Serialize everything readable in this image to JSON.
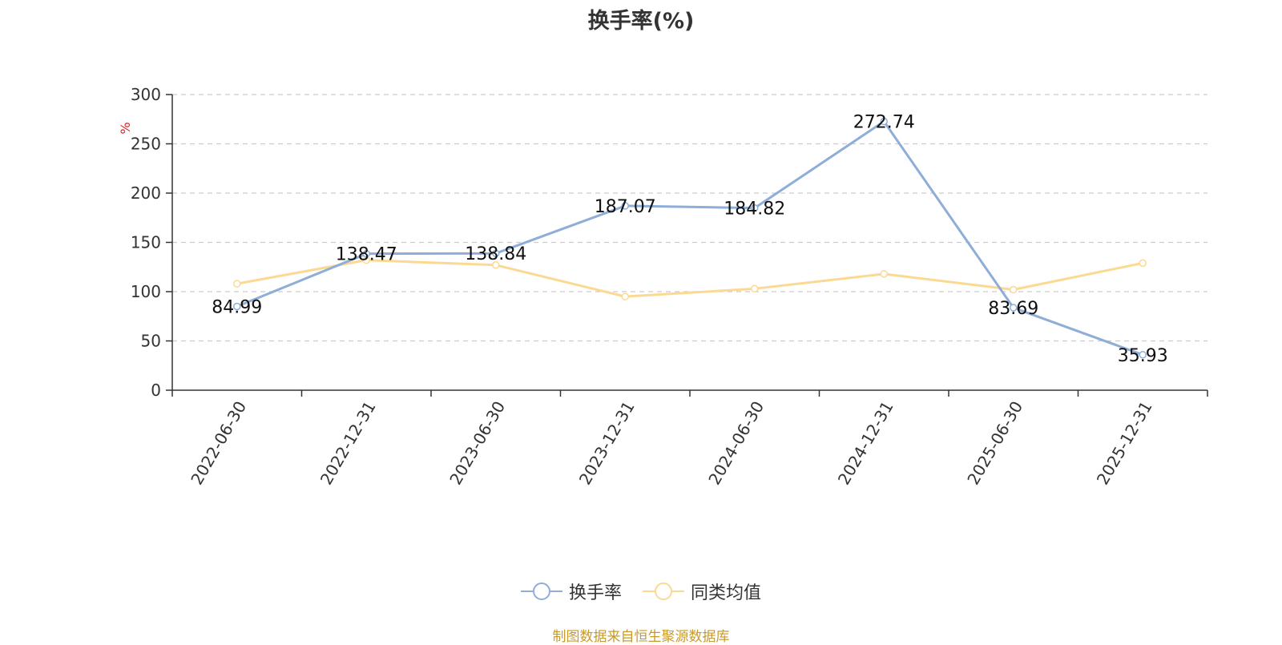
{
  "chart_data": {
    "type": "line",
    "title": "换手率(%)",
    "ylabel": "%",
    "ylim": [
      0,
      300
    ],
    "yticks": [
      0,
      50,
      100,
      150,
      200,
      250,
      300
    ],
    "grid": "horizontal-dashed",
    "categories": [
      "2022-06-30",
      "2022-12-31",
      "2023-06-30",
      "2023-12-31",
      "2024-06-30",
      "2024-12-31",
      "2025-06-30",
      "2025-12-31"
    ],
    "series": [
      {
        "name": "换手率",
        "color": "#8eaed8",
        "values": [
          84.99,
          138.47,
          138.84,
          187.07,
          184.82,
          272.74,
          83.69,
          35.93
        ],
        "labels": [
          "84.99",
          "138.47",
          "138.84",
          "187.07",
          "184.82",
          "272.74",
          "83.69",
          "35.93"
        ]
      },
      {
        "name": "同类均值",
        "color": "#fcd993",
        "values": [
          108,
          132,
          127,
          95,
          103,
          118,
          102,
          129
        ]
      }
    ],
    "legend_position": "bottom-center",
    "source": "制图数据来自恒生聚源数据库"
  }
}
